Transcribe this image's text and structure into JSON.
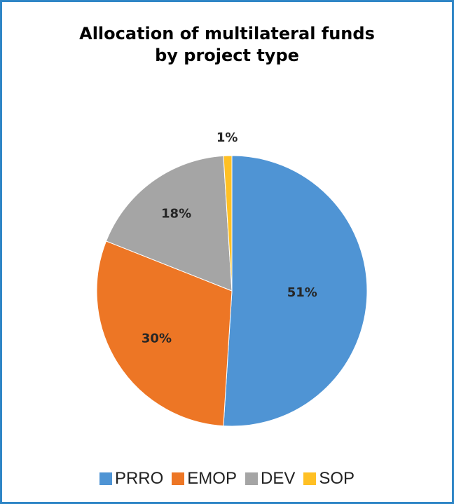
{
  "chart_data": {
    "type": "pie",
    "title": [
      "Allocation of multilateral funds",
      "by project type"
    ],
    "slices": [
      {
        "label": "PRRO",
        "value": 51,
        "display": "51%",
        "color": "#4f94d4"
      },
      {
        "label": "EMOP",
        "value": 30,
        "display": "30%",
        "color": "#ed7625"
      },
      {
        "label": "DEV",
        "value": 18,
        "display": "18%",
        "color": "#a5a5a5"
      },
      {
        "label": "SOP",
        "value": 1,
        "display": "1%",
        "color": "#ffc024"
      }
    ],
    "legend_position": "bottom",
    "frame_color": "#2f86c6"
  }
}
